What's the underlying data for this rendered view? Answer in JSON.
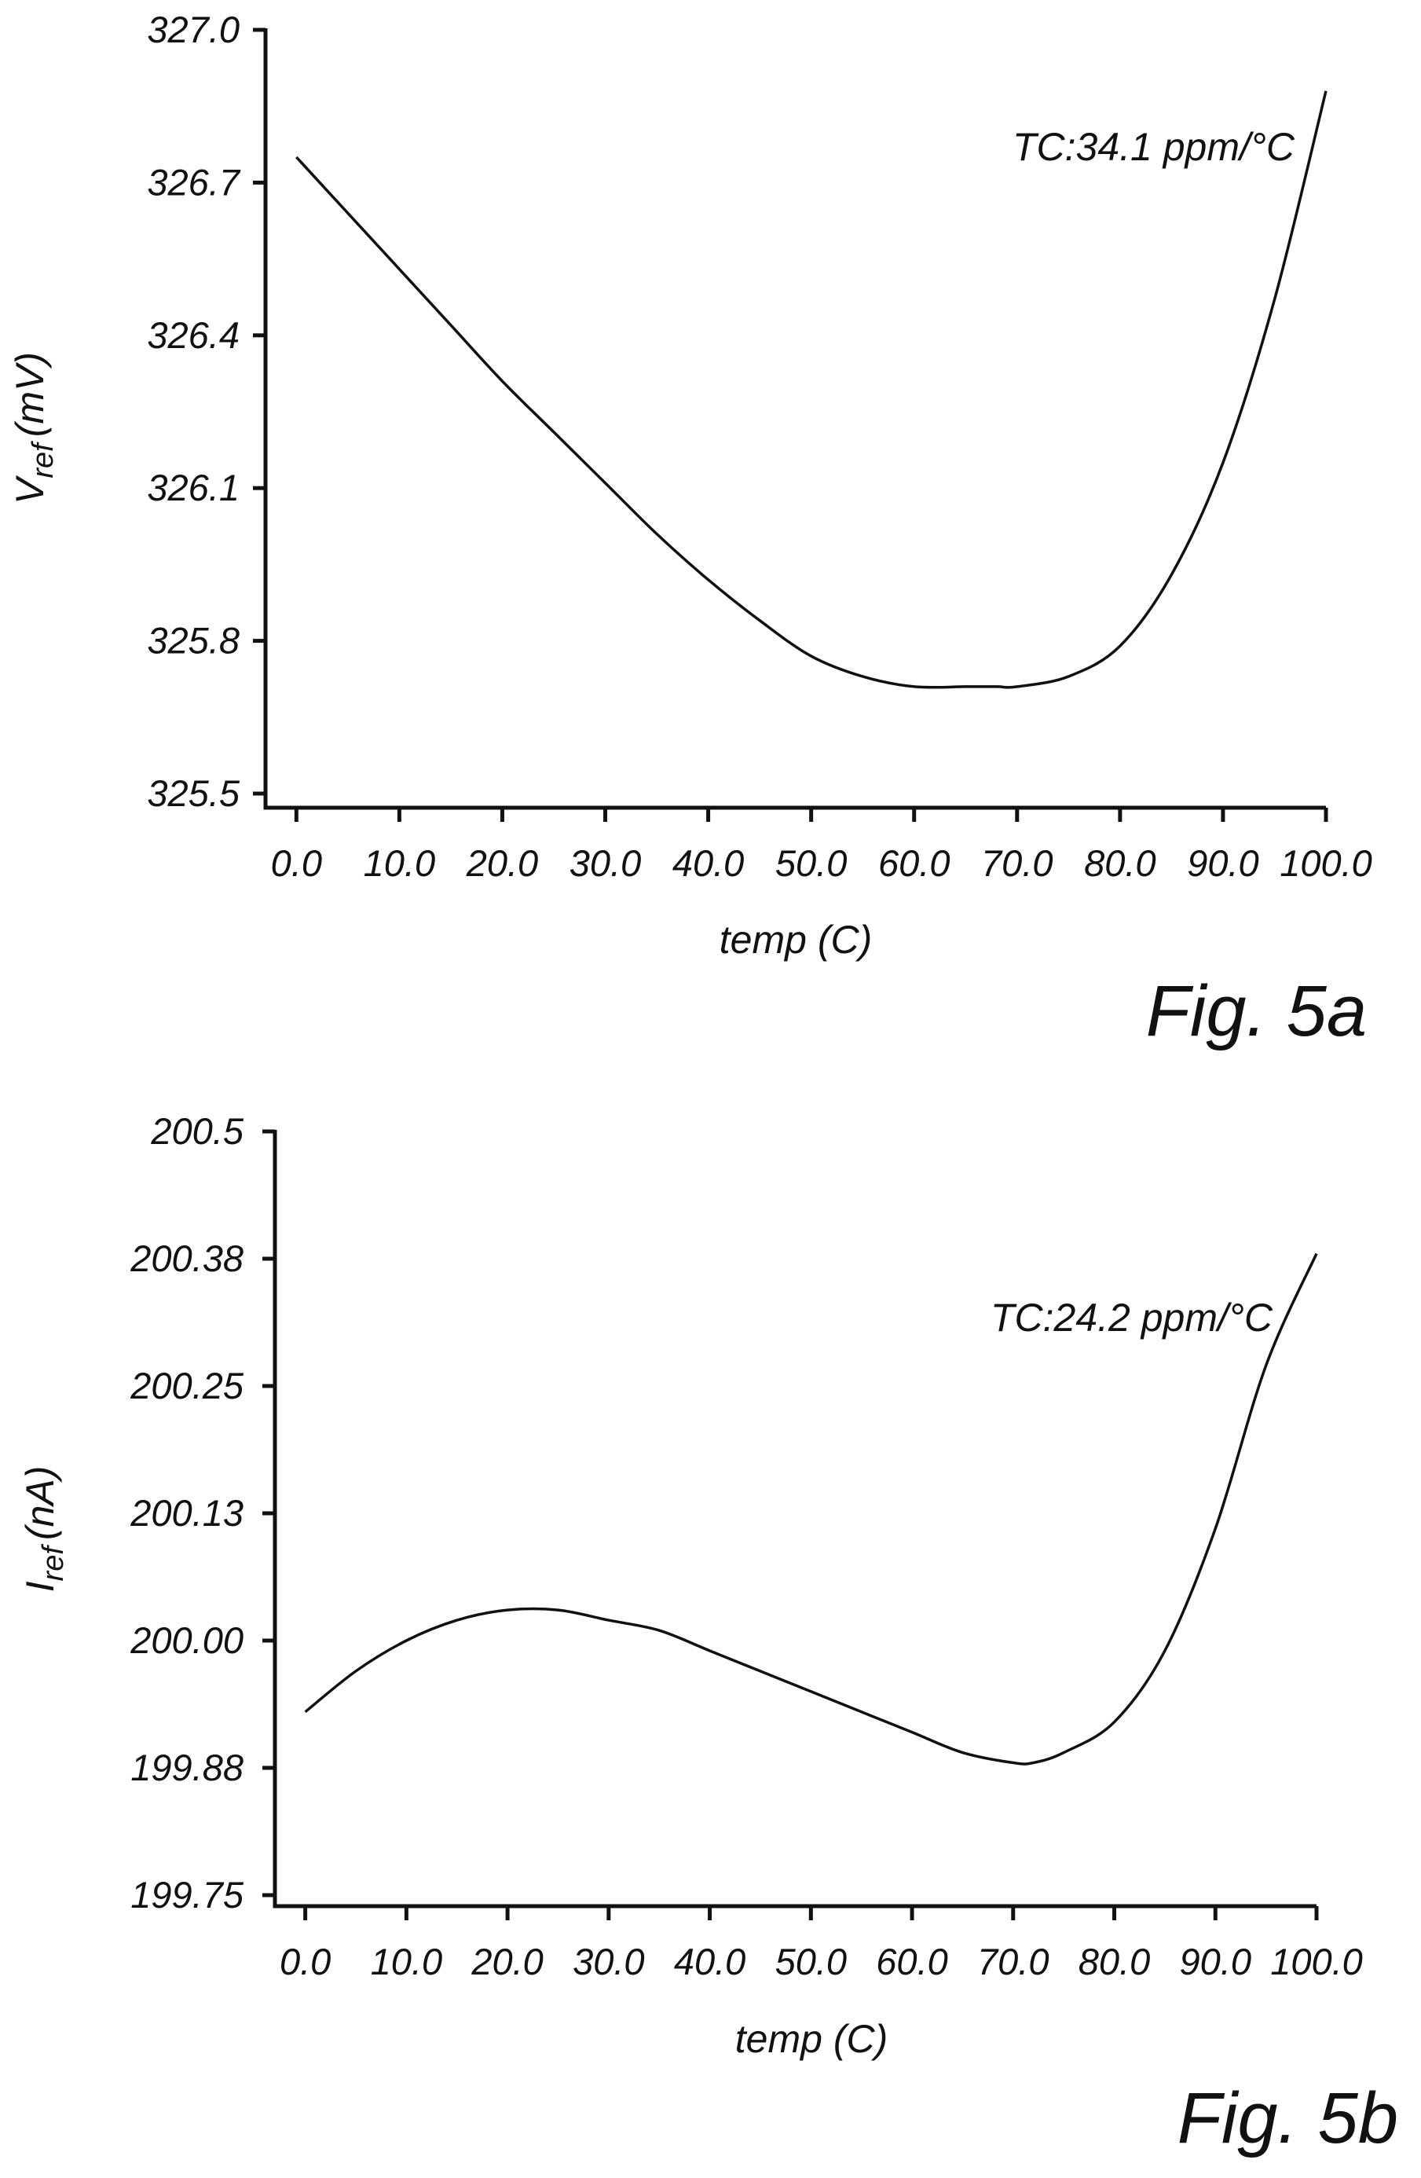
{
  "chart_data": [
    {
      "type": "line",
      "figure_label": "Fig. 5a",
      "xlabel": "temp (C)",
      "ylabel_main": "V",
      "ylabel_sub": "ref",
      "ylabel_unit": "(mV)",
      "annotation": "TC:34.1 ppm/°C",
      "xlim": [
        -3,
        100
      ],
      "ylim": [
        325.5,
        327.0
      ],
      "xticks": [
        0,
        10,
        20,
        30,
        40,
        50,
        60,
        70,
        80,
        90,
        100
      ],
      "xtick_labels": [
        "0.0",
        "10.0",
        "20.0",
        "30.0",
        "40.0",
        "50.0",
        "60.0",
        "70.0",
        "80.0",
        "90.0",
        "100.0"
      ],
      "yticks": [
        325.5,
        325.8,
        326.1,
        326.4,
        326.7,
        327.0
      ],
      "ytick_labels": [
        "325.5",
        "325.8",
        "326.1",
        "326.4",
        "326.7",
        "327.0"
      ],
      "x": [
        0,
        5,
        10,
        15,
        20,
        25,
        30,
        35,
        40,
        45,
        50,
        55,
        60,
        65,
        68,
        70,
        75,
        80,
        85,
        90,
        95,
        100
      ],
      "y": [
        326.75,
        326.64,
        326.53,
        326.42,
        326.31,
        326.21,
        326.11,
        326.01,
        325.92,
        325.84,
        325.77,
        325.73,
        325.71,
        325.71,
        325.71,
        325.71,
        325.73,
        325.79,
        325.93,
        326.15,
        326.47,
        326.88
      ]
    },
    {
      "type": "line",
      "figure_label": "Fig. 5b",
      "xlabel": "temp (C)",
      "ylabel_main": "I",
      "ylabel_sub": "ref",
      "ylabel_unit": "(nA)",
      "annotation": "TC:24.2 ppm/°C",
      "xlim": [
        -3,
        100
      ],
      "ylim": [
        199.75,
        200.5
      ],
      "xticks": [
        0,
        10,
        20,
        30,
        40,
        50,
        60,
        70,
        80,
        90,
        100
      ],
      "xtick_labels": [
        "0.0",
        "10.0",
        "20.0",
        "30.0",
        "40.0",
        "50.0",
        "60.0",
        "70.0",
        "80.0",
        "90.0",
        "100.0"
      ],
      "yticks": [
        199.75,
        199.875,
        200.0,
        200.125,
        200.25,
        200.375,
        200.5
      ],
      "ytick_labels": [
        "199.75",
        "199.88",
        "200.00",
        "200.13",
        "200.25",
        "200.38",
        "200.5"
      ],
      "x": [
        0,
        5,
        10,
        15,
        20,
        25,
        30,
        35,
        40,
        45,
        50,
        55,
        60,
        65,
        70,
        72,
        75,
        80,
        85,
        90,
        95,
        100
      ],
      "y": [
        199.93,
        199.97,
        200.0,
        200.02,
        200.03,
        200.03,
        200.02,
        200.01,
        199.99,
        199.97,
        199.95,
        199.93,
        199.91,
        199.89,
        199.88,
        199.88,
        199.89,
        199.92,
        199.99,
        200.11,
        200.27,
        200.38
      ]
    }
  ]
}
